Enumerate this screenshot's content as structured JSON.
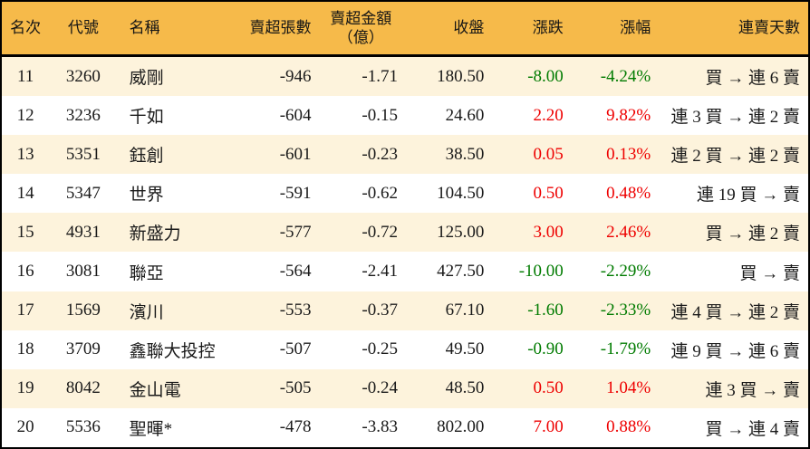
{
  "colors": {
    "header_bg": "#f6ba4a",
    "row_alt_bg": "#fdf3dc",
    "row_bg": "#ffffff",
    "border": "#000000",
    "up_red": "#ee0000",
    "down_green": "#007b00"
  },
  "chart_data": {
    "type": "table",
    "legend_note": "rank 11-20 net-sell leaderboard; negative change shown green, positive red (Taiwan convention)",
    "columns": [
      "名次",
      "代號",
      "名稱",
      "賣超張數",
      "賣超金額\n（億）",
      "收盤",
      "漲跌",
      "漲幅",
      "連賣天數"
    ],
    "rows": [
      {
        "rank": "11",
        "code": "3260",
        "name": "威剛",
        "net_sell_lots": "-946",
        "net_sell_amount": "-1.71",
        "close": "180.50",
        "change": "-8.00",
        "change_pct": "-4.24%",
        "trend": "down",
        "streak": "買 → 連 6 賣"
      },
      {
        "rank": "12",
        "code": "3236",
        "name": "千如",
        "net_sell_lots": "-604",
        "net_sell_amount": "-0.15",
        "close": "24.60",
        "change": "2.20",
        "change_pct": "9.82%",
        "trend": "up",
        "streak": "連 3 買 → 連 2 賣"
      },
      {
        "rank": "13",
        "code": "5351",
        "name": "鈺創",
        "net_sell_lots": "-601",
        "net_sell_amount": "-0.23",
        "close": "38.50",
        "change": "0.05",
        "change_pct": "0.13%",
        "trend": "up",
        "streak": "連 2 買 → 連 2 賣"
      },
      {
        "rank": "14",
        "code": "5347",
        "name": "世界",
        "net_sell_lots": "-591",
        "net_sell_amount": "-0.62",
        "close": "104.50",
        "change": "0.50",
        "change_pct": "0.48%",
        "trend": "up",
        "streak": "連 19 買 → 賣"
      },
      {
        "rank": "15",
        "code": "4931",
        "name": "新盛力",
        "net_sell_lots": "-577",
        "net_sell_amount": "-0.72",
        "close": "125.00",
        "change": "3.00",
        "change_pct": "2.46%",
        "trend": "up",
        "streak": "買 → 連 2 賣"
      },
      {
        "rank": "16",
        "code": "3081",
        "name": "聯亞",
        "net_sell_lots": "-564",
        "net_sell_amount": "-2.41",
        "close": "427.50",
        "change": "-10.00",
        "change_pct": "-2.29%",
        "trend": "down",
        "streak": "買 → 賣"
      },
      {
        "rank": "17",
        "code": "1569",
        "name": "濱川",
        "net_sell_lots": "-553",
        "net_sell_amount": "-0.37",
        "close": "67.10",
        "change": "-1.60",
        "change_pct": "-2.33%",
        "trend": "down",
        "streak": "連 4 買 → 連 2 賣"
      },
      {
        "rank": "18",
        "code": "3709",
        "name": "鑫聯大投控",
        "net_sell_lots": "-507",
        "net_sell_amount": "-0.25",
        "close": "49.50",
        "change": "-0.90",
        "change_pct": "-1.79%",
        "trend": "down",
        "streak": "連 9 買 → 連 6 賣"
      },
      {
        "rank": "19",
        "code": "8042",
        "name": "金山電",
        "net_sell_lots": "-505",
        "net_sell_amount": "-0.24",
        "close": "48.50",
        "change": "0.50",
        "change_pct": "1.04%",
        "trend": "up",
        "streak": "連 3 買 → 賣"
      },
      {
        "rank": "20",
        "code": "5536",
        "name": "聖暉*",
        "net_sell_lots": "-478",
        "net_sell_amount": "-3.83",
        "close": "802.00",
        "change": "7.00",
        "change_pct": "0.88%",
        "trend": "up",
        "streak": "買 → 連 4 賣"
      }
    ]
  }
}
